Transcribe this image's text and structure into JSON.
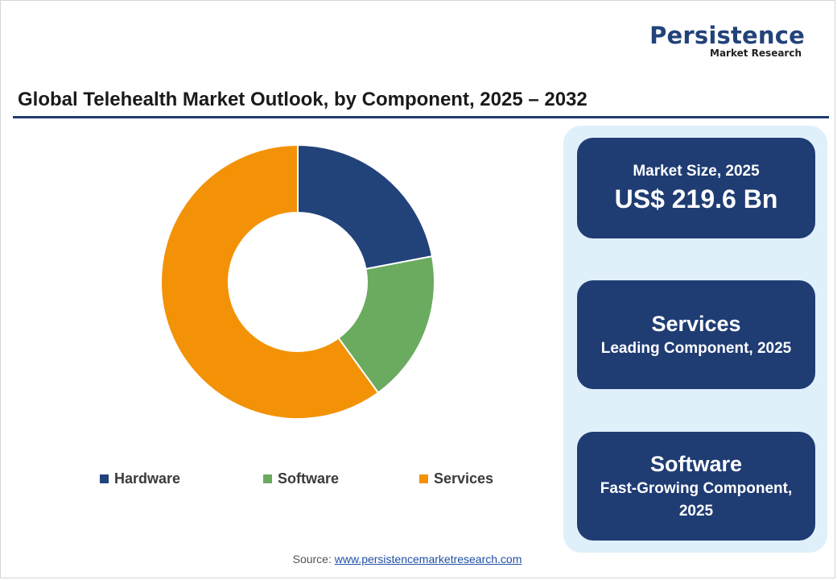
{
  "brand": {
    "name": "Persistence",
    "sub": "Market Research"
  },
  "title": "Global Telehealth Market Outlook, by Component, 2025 – 2032",
  "chart_data": {
    "type": "pie",
    "donut": true,
    "categories": [
      "Hardware",
      "Software",
      "Services"
    ],
    "values": [
      22,
      18,
      60
    ],
    "colors": [
      "#22427a",
      "#6aab5f",
      "#f39207"
    ],
    "legend_position": "bottom"
  },
  "cards": {
    "market_label": "Market Size, 2025",
    "market_value": "US$ 219.6 Bn",
    "leading_name": "Services",
    "leading_desc": "Leading Component, 2025",
    "growing_name": "Software",
    "growing_desc": "Fast-Growing Component, 2025"
  },
  "source": {
    "label": "Source:",
    "link": "www.persistencemarketresearch.com"
  }
}
